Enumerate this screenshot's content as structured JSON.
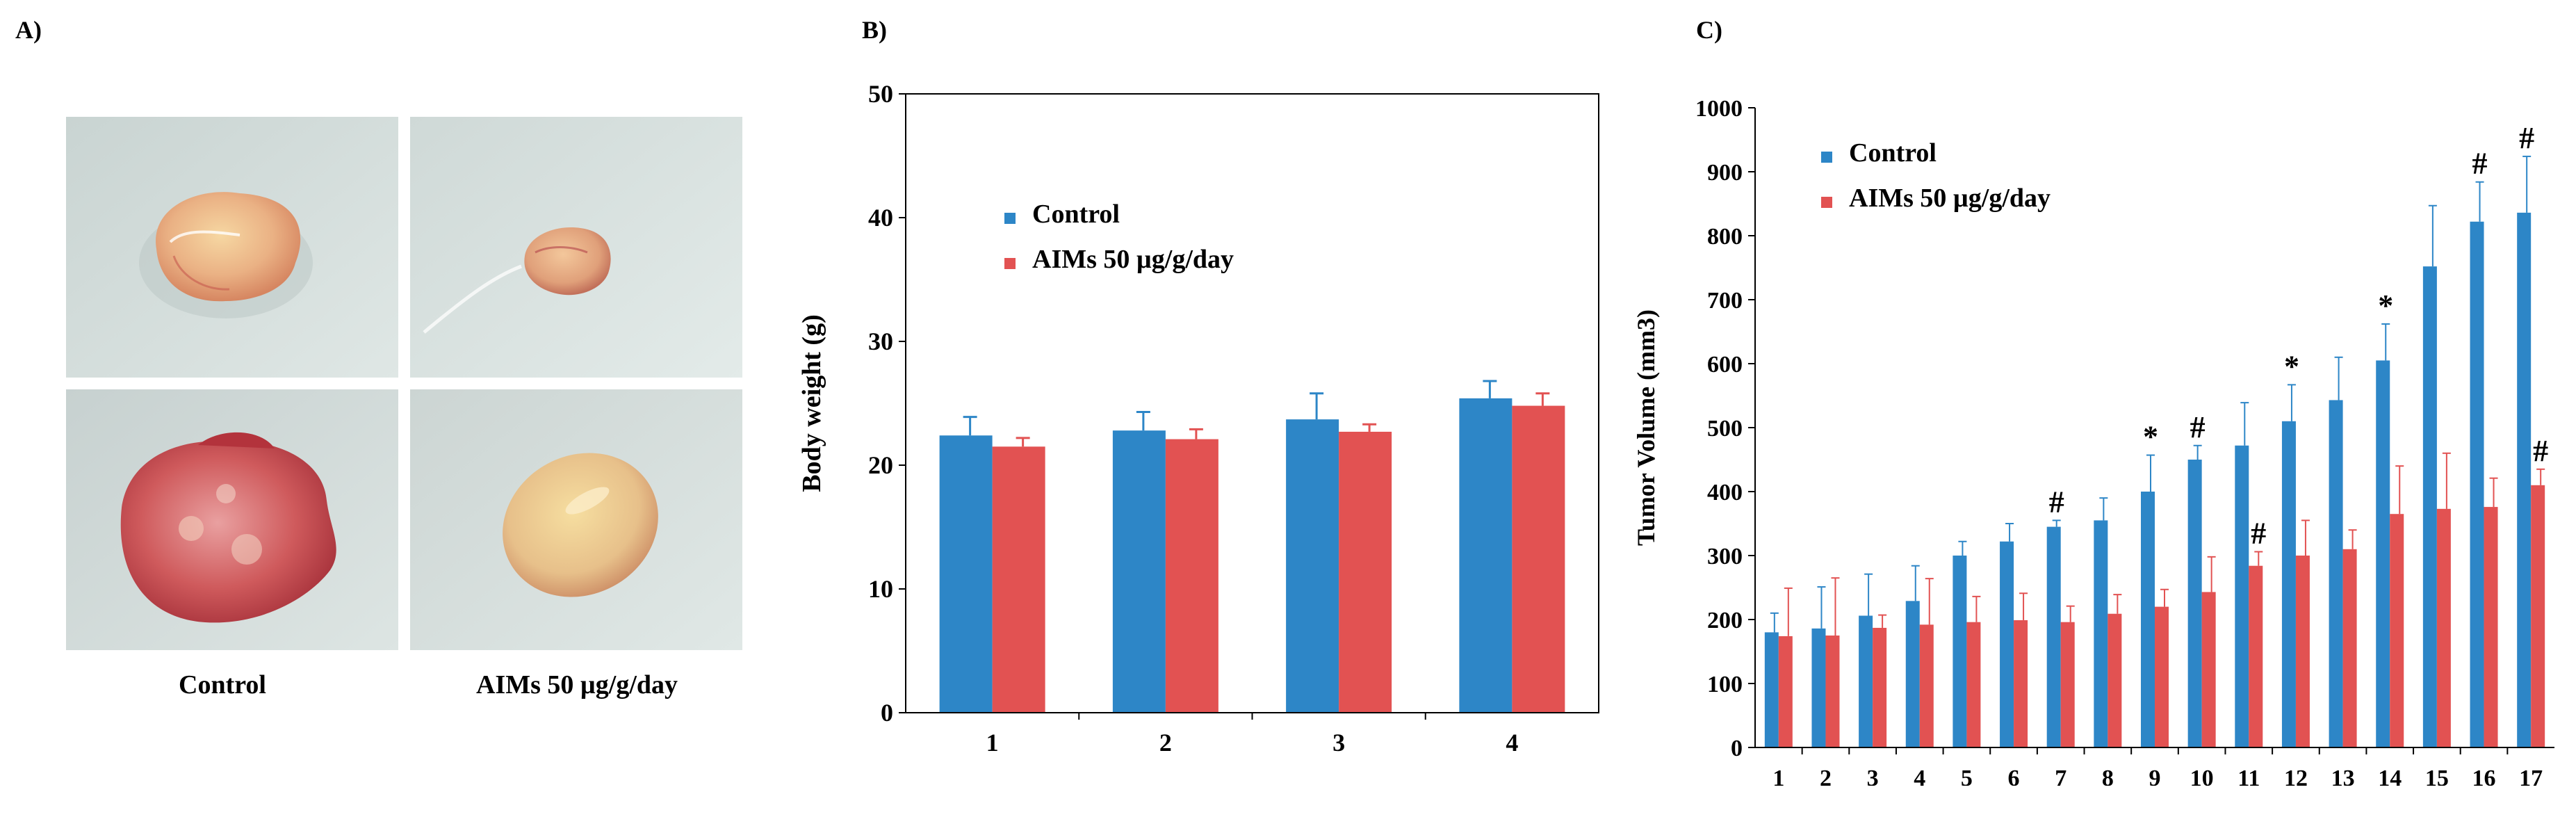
{
  "panel_a": {
    "label": "A)",
    "captions": [
      "Control",
      "AIMs 50 µg/g/day"
    ],
    "photos": [
      {
        "name": "tumor-photo-control-1",
        "kind": "control",
        "fill": "#e9b488"
      },
      {
        "name": "tumor-photo-aims-1",
        "kind": "aims",
        "fill": "#e6a986"
      },
      {
        "name": "tumor-photo-control-2",
        "kind": "control",
        "fill": "#c84a4e"
      },
      {
        "name": "tumor-photo-aims-2",
        "kind": "aims",
        "fill": "#e8c68c"
      }
    ]
  },
  "chart_data": [
    {
      "id": "B",
      "label": "B)",
      "type": "bar",
      "title": "",
      "xlabel": "",
      "ylabel": "Body weight (g)",
      "ylim": [
        0,
        50
      ],
      "yticks": [
        0,
        10,
        20,
        30,
        40,
        50
      ],
      "categories": [
        "1",
        "2",
        "3",
        "4"
      ],
      "series": [
        {
          "name": "Control",
          "color": "#2d86c7",
          "values": [
            22.4,
            22.8,
            23.7,
            25.4
          ],
          "errors": [
            1.5,
            1.5,
            2.1,
            1.4
          ]
        },
        {
          "name": "AIMs 50 µg/g/day",
          "color": "#e25252",
          "values": [
            21.5,
            22.1,
            22.7,
            24.8
          ],
          "errors": [
            0.7,
            0.8,
            0.6,
            1.0
          ]
        }
      ],
      "annotations": [],
      "legend": "upper-left"
    },
    {
      "id": "C",
      "label": "C)",
      "type": "bar",
      "title": "",
      "xlabel": "",
      "ylabel": "Tumor Volume (mm3)",
      "ylim": [
        0,
        1000
      ],
      "yticks": [
        0,
        100,
        200,
        300,
        400,
        500,
        600,
        700,
        800,
        900,
        1000
      ],
      "categories": [
        "1",
        "2",
        "3",
        "4",
        "5",
        "6",
        "7",
        "8",
        "9",
        "10",
        "11",
        "12",
        "13",
        "14",
        "15",
        "16",
        "17"
      ],
      "series": [
        {
          "name": "Control",
          "color": "#2d86c7",
          "values": [
            180,
            186,
            206,
            229,
            300,
            322,
            345,
            355,
            400,
            450,
            472,
            510,
            543,
            605,
            752,
            822,
            836
          ],
          "errors": [
            30,
            65,
            65,
            55,
            22,
            28,
            10,
            35,
            57,
            22,
            67,
            57,
            67,
            57,
            95,
            62,
            88
          ]
        },
        {
          "name": "AIMs 50 µg/g/day",
          "color": "#e25252",
          "values": [
            174,
            175,
            187,
            192,
            196,
            199,
            196,
            209,
            220,
            243,
            284,
            300,
            310,
            365,
            373,
            376,
            410
          ],
          "errors": [
            75,
            90,
            20,
            72,
            40,
            42,
            25,
            30,
            27,
            55,
            22,
            55,
            30,
            75,
            87,
            45,
            25
          ]
        }
      ],
      "annotations": [
        {
          "category": 7,
          "series": 0,
          "text": "#"
        },
        {
          "category": 9,
          "series": 0,
          "text": "*"
        },
        {
          "category": 10,
          "series": 0,
          "text": "#"
        },
        {
          "category": 11,
          "series": 1,
          "text": "#"
        },
        {
          "category": 12,
          "series": 0,
          "text": "*"
        },
        {
          "category": 14,
          "series": 0,
          "text": "*"
        },
        {
          "category": 16,
          "series": 0,
          "text": "#"
        },
        {
          "category": 17,
          "series": 0,
          "text": "#"
        },
        {
          "category": 17,
          "series": 1,
          "text": "#"
        }
      ],
      "legend": "upper-left"
    }
  ]
}
